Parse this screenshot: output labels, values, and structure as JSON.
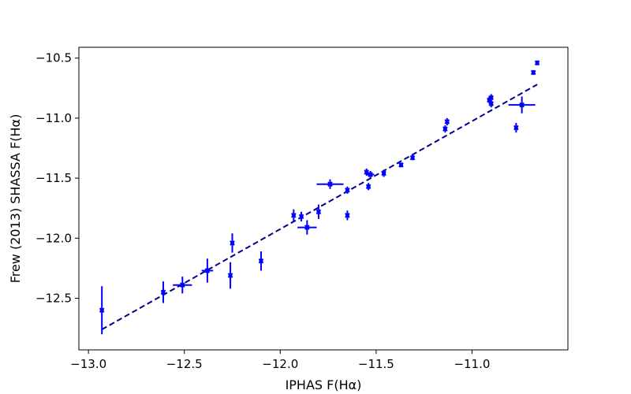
{
  "chart_data": {
    "type": "scatter",
    "title": "",
    "xlabel": "IPHAS F(Hα)",
    "ylabel": "Frew (2013) SHASSA F(Hα)",
    "xlim": [
      -13.05,
      -10.5
    ],
    "ylim": [
      -12.93,
      -10.41
    ],
    "x_ticks": [
      -13.0,
      -12.5,
      -12.0,
      -11.5,
      -11.0
    ],
    "x_tick_labels": [
      "−13.0",
      "−12.5",
      "−12.0",
      "−11.5",
      "−11.0"
    ],
    "y_ticks": [
      -12.5,
      -12.0,
      -11.5,
      -11.0,
      -10.5
    ],
    "y_tick_labels": [
      "−12.5",
      "−12.0",
      "−11.5",
      "−11.0",
      "−10.5"
    ],
    "grid": false,
    "legend": "none",
    "marker_color": "#0000ff",
    "fit_color": "#00008b",
    "series": [
      {
        "type": "errorbar",
        "points": [
          {
            "x": -12.93,
            "y": -12.6,
            "xerr": 0.01,
            "yerr": 0.2
          },
          {
            "x": -12.61,
            "y": -12.45,
            "xerr": 0.01,
            "yerr": 0.09
          },
          {
            "x": -12.51,
            "y": -12.39,
            "xerr": 0.05,
            "yerr": 0.07
          },
          {
            "x": -12.38,
            "y": -12.27,
            "xerr": 0.03,
            "yerr": 0.1
          },
          {
            "x": -12.26,
            "y": -12.31,
            "xerr": 0.01,
            "yerr": 0.11
          },
          {
            "x": -12.25,
            "y": -12.04,
            "xerr": 0.01,
            "yerr": 0.08
          },
          {
            "x": -12.1,
            "y": -12.19,
            "xerr": 0.01,
            "yerr": 0.08
          },
          {
            "x": -11.93,
            "y": -11.81,
            "xerr": 0.01,
            "yerr": 0.05
          },
          {
            "x": -11.89,
            "y": -11.82,
            "xerr": 0.01,
            "yerr": 0.04
          },
          {
            "x": -11.86,
            "y": -11.91,
            "xerr": 0.05,
            "yerr": 0.06
          },
          {
            "x": -11.8,
            "y": -11.78,
            "xerr": 0.01,
            "yerr": 0.06
          },
          {
            "x": -11.74,
            "y": -11.55,
            "xerr": 0.07,
            "yerr": 0.04
          },
          {
            "x": -11.65,
            "y": -11.6,
            "xerr": 0.01,
            "yerr": 0.03
          },
          {
            "x": -11.65,
            "y": -11.81,
            "xerr": 0.01,
            "yerr": 0.04
          },
          {
            "x": -11.55,
            "y": -11.45,
            "xerr": 0.01,
            "yerr": 0.03
          },
          {
            "x": -11.54,
            "y": -11.57,
            "xerr": 0.01,
            "yerr": 0.03
          },
          {
            "x": -11.53,
            "y": -11.47,
            "xerr": 0.02,
            "yerr": 0.03
          },
          {
            "x": -11.46,
            "y": -11.46,
            "xerr": 0.01,
            "yerr": 0.03
          },
          {
            "x": -11.37,
            "y": -11.39,
            "xerr": 0.01,
            "yerr": 0.02
          },
          {
            "x": -11.31,
            "y": -11.33,
            "xerr": 0.01,
            "yerr": 0.02
          },
          {
            "x": -11.14,
            "y": -11.09,
            "xerr": 0.01,
            "yerr": 0.03
          },
          {
            "x": -11.13,
            "y": -11.03,
            "xerr": 0.01,
            "yerr": 0.03
          },
          {
            "x": -10.91,
            "y": -10.85,
            "xerr": 0.01,
            "yerr": 0.03
          },
          {
            "x": -10.9,
            "y": -10.83,
            "xerr": 0.01,
            "yerr": 0.03
          },
          {
            "x": -10.9,
            "y": -10.88,
            "xerr": 0.01,
            "yerr": 0.03
          },
          {
            "x": -10.77,
            "y": -11.08,
            "xerr": 0.01,
            "yerr": 0.04
          },
          {
            "x": -10.74,
            "y": -10.89,
            "xerr": 0.07,
            "yerr": 0.07
          },
          {
            "x": -10.68,
            "y": -10.62,
            "xerr": 0.01,
            "yerr": 0.02
          },
          {
            "x": -10.66,
            "y": -10.54,
            "xerr": 0.01,
            "yerr": 0.02
          }
        ]
      },
      {
        "type": "line",
        "style": "dashed",
        "x": [
          -12.93,
          -10.66
        ],
        "y": [
          -12.76,
          -10.72
        ]
      }
    ]
  }
}
